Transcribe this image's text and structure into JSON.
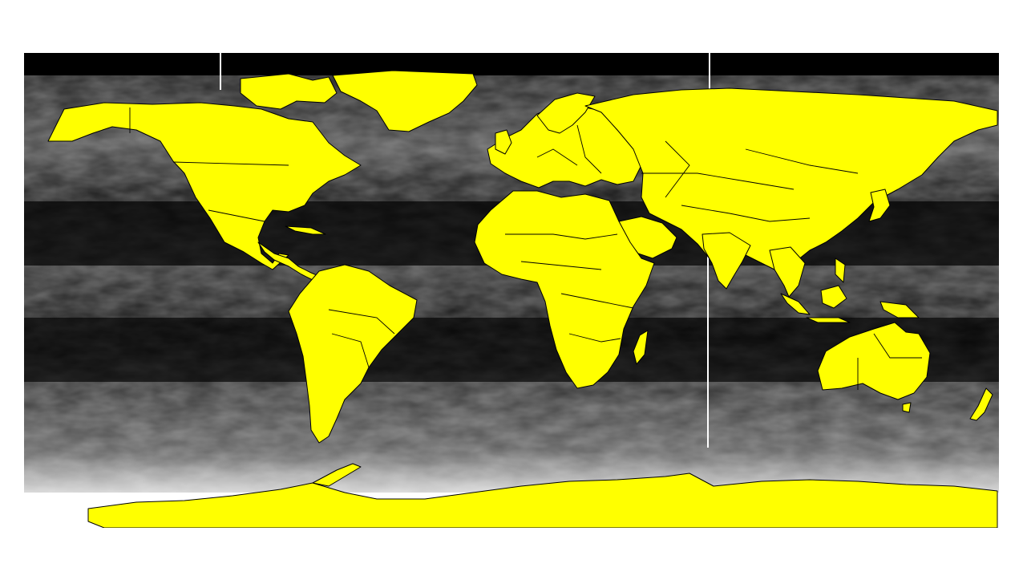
{
  "map": {
    "projection": "equirectangular",
    "extent": {
      "lon": [
        -180,
        180
      ],
      "lat": [
        -90,
        90
      ]
    },
    "ocean_field": "grayscale",
    "colors": {
      "land": "#ffff00",
      "coastline": "#000000",
      "ocean_low": "#000000",
      "ocean_mid": "#555555",
      "ocean_high": "#ffffff",
      "background": "#ffffff"
    }
  }
}
